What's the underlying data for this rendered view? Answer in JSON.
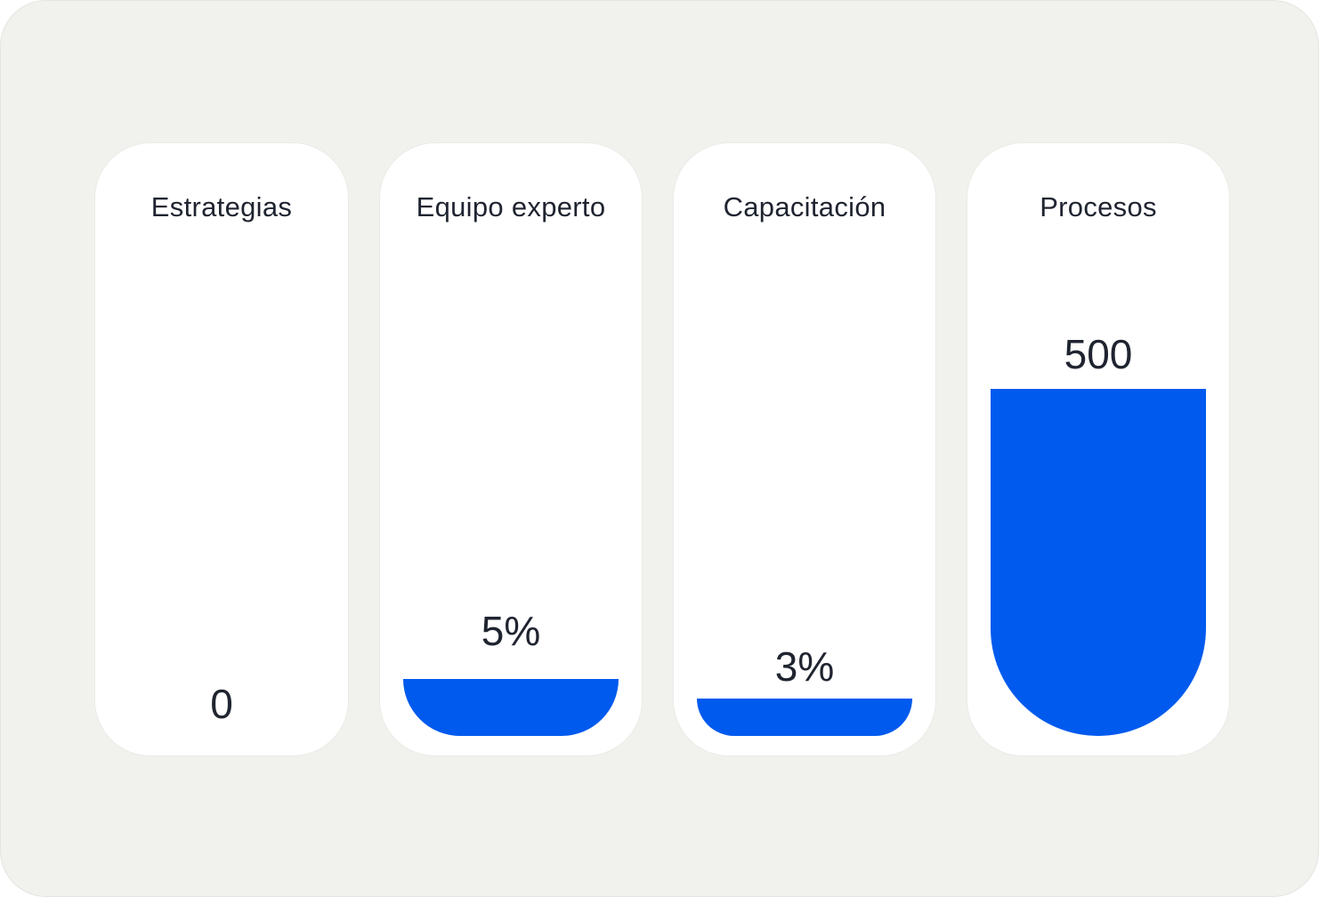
{
  "cards": [
    {
      "label": "Estrategias",
      "value": "0"
    },
    {
      "label": "Equipo experto",
      "value": "5%"
    },
    {
      "label": "Capacitación",
      "value": "3%"
    },
    {
      "label": "Procesos",
      "value": "500"
    }
  ]
}
